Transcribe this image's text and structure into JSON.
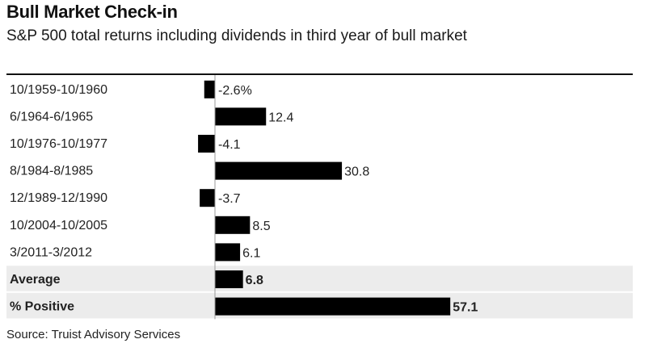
{
  "title": "Bull Market Check-in",
  "subtitle": "S&P 500 total returns including dividends in third year of bull market",
  "source": "Source: Truist Advisory Services",
  "chart_data": {
    "type": "bar",
    "orientation": "horizontal",
    "title": "Bull Market Check-in",
    "subtitle": "S&P 500 total returns including dividends in third year of bull market",
    "xlabel": "",
    "ylabel": "",
    "grid": false,
    "categories": [
      "10/1959-10/1960",
      "6/1964-6/1965",
      "10/1976-10/1977",
      "8/1984-8/1985",
      "12/1989-12/1990",
      "10/2004-10/2005",
      "3/2011-3/2012",
      "Average",
      "% Positive"
    ],
    "values": [
      -2.6,
      12.4,
      -4.1,
      30.8,
      -3.7,
      8.5,
      6.1,
      6.8,
      57.1
    ],
    "value_labels": [
      "-2.6%",
      "12.4",
      "-4.1",
      "30.8",
      "-3.7",
      "8.5",
      "6.1",
      "6.8",
      "57.1"
    ],
    "highlighted_rows": [
      "Average",
      "% Positive"
    ],
    "bar_color": "#000000",
    "highlight_background": "#ececec"
  }
}
